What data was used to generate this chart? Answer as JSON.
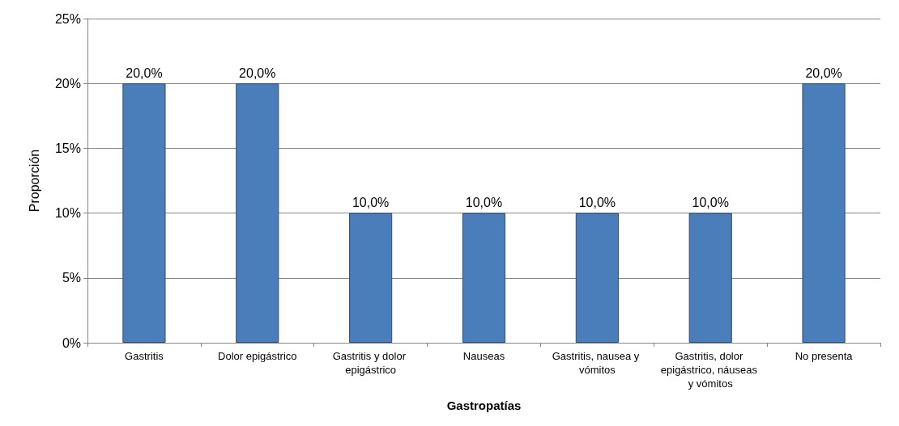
{
  "chart_data": {
    "type": "bar",
    "xlabel": "Gastropatías",
    "ylabel": "Proporción",
    "categories": [
      "Gastritis",
      "Dolor epigástrico",
      "Gastritis y dolor epigástrico",
      "Nauseas",
      "Gastritis, nausea y vómitos",
      "Gastritis, dolor epigástrico, náuseas y vómitos",
      "No presenta"
    ],
    "values": [
      20,
      20,
      10,
      10,
      10,
      10,
      20
    ],
    "value_labels": [
      "20,0%",
      "20,0%",
      "10,0%",
      "10,0%",
      "10,0%",
      "10,0%",
      "20,0%"
    ],
    "color": "#4a7ebb",
    "ylim": [
      0,
      25
    ],
    "yticks": [
      {
        "value": 0,
        "label": "0%"
      },
      {
        "value": 5,
        "label": "5%"
      },
      {
        "value": 10,
        "label": "10%"
      },
      {
        "value": 15,
        "label": "15%"
      },
      {
        "value": 20,
        "label": "20%"
      },
      {
        "value": 25,
        "label": "25%"
      }
    ],
    "grid": "y"
  }
}
